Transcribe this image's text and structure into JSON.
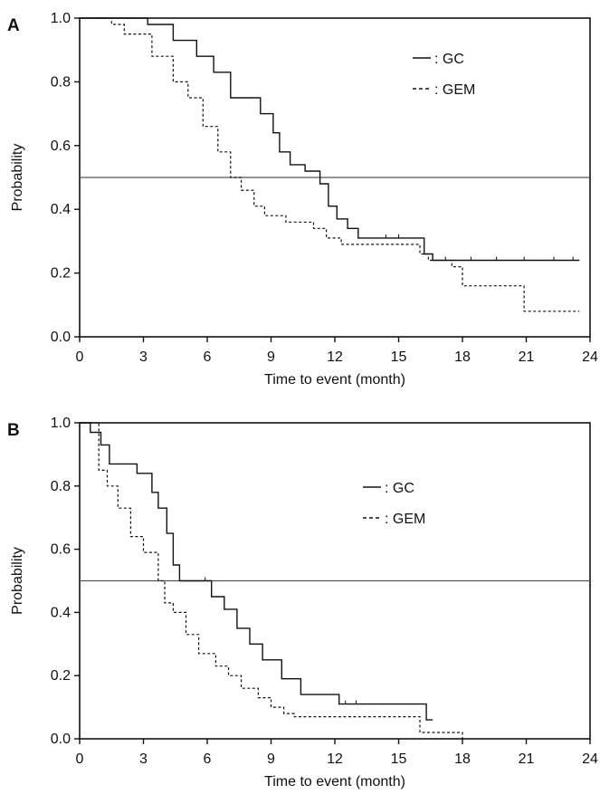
{
  "chart_data": [
    {
      "type": "line",
      "step": true,
      "panel_label": "A",
      "xlabel": "Time to event (month)",
      "ylabel": "Probability",
      "xlim": [
        0,
        24
      ],
      "ylim": [
        0,
        1
      ],
      "x_ticks": [
        0,
        3,
        6,
        9,
        12,
        15,
        18,
        21,
        24
      ],
      "y_ticks": [
        0.0,
        0.2,
        0.4,
        0.6,
        0.8,
        1.0
      ],
      "reference_line": 0.5,
      "legend_position": "upper-right",
      "series": [
        {
          "name": ": GC",
          "line_style": "solid",
          "x": [
            0,
            3.2,
            4.4,
            5.5,
            6.3,
            7.1,
            8.5,
            9.1,
            9.4,
            9.9,
            10.6,
            11.3,
            11.7,
            12.1,
            12.6,
            13.1,
            16.2,
            16.6,
            23.5
          ],
          "y": [
            1.0,
            0.98,
            0.93,
            0.88,
            0.83,
            0.75,
            0.7,
            0.64,
            0.58,
            0.54,
            0.52,
            0.48,
            0.41,
            0.37,
            0.34,
            0.31,
            0.26,
            0.24,
            0.24
          ]
        },
        {
          "name": ": GEM",
          "line_style": "dashed",
          "x": [
            0,
            1.5,
            2.1,
            3.4,
            4.4,
            5.1,
            5.8,
            6.5,
            7.1,
            7.6,
            8.2,
            8.7,
            9.7,
            11.0,
            11.6,
            12.3,
            16.0,
            16.4,
            17.5,
            18.0,
            20.9,
            23.5
          ],
          "y": [
            1.0,
            0.98,
            0.95,
            0.88,
            0.8,
            0.75,
            0.66,
            0.58,
            0.5,
            0.46,
            0.41,
            0.38,
            0.36,
            0.34,
            0.31,
            0.29,
            0.26,
            0.24,
            0.22,
            0.16,
            0.08,
            0.08
          ]
        }
      ],
      "censor_marks": {
        "GC": [
          14.4,
          15.0,
          17.2,
          18.4,
          19.6,
          20.9,
          22.3,
          23.2
        ],
        "GEM": []
      }
    },
    {
      "type": "line",
      "step": true,
      "panel_label": "B",
      "xlabel": "Time to event (month)",
      "ylabel": "Probability",
      "xlim": [
        0,
        24
      ],
      "ylim": [
        0,
        1
      ],
      "x_ticks": [
        0,
        3,
        6,
        9,
        12,
        15,
        18,
        21,
        24
      ],
      "y_ticks": [
        0.0,
        0.2,
        0.4,
        0.6,
        0.8,
        1.0
      ],
      "reference_line": 0.5,
      "legend_position": "center-right",
      "series": [
        {
          "name": ": GC",
          "line_style": "solid",
          "x": [
            0,
            0.5,
            1.0,
            1.4,
            2.7,
            3.4,
            3.7,
            4.1,
            4.4,
            4.7,
            6.2,
            6.8,
            7.4,
            8.0,
            8.6,
            9.5,
            10.4,
            12.2,
            16.3,
            16.6
          ],
          "y": [
            1.0,
            0.97,
            0.93,
            0.87,
            0.84,
            0.78,
            0.73,
            0.65,
            0.55,
            0.5,
            0.45,
            0.41,
            0.35,
            0.3,
            0.25,
            0.19,
            0.14,
            0.11,
            0.06,
            0.06
          ]
        },
        {
          "name": ": GEM",
          "line_style": "dashed",
          "x": [
            0,
            0.9,
            1.3,
            1.8,
            2.4,
            3.0,
            3.7,
            4.0,
            4.4,
            5.0,
            5.6,
            6.4,
            7.0,
            7.6,
            8.4,
            9.0,
            9.6,
            10.1,
            16.0,
            17.8,
            18.0
          ],
          "y": [
            1.0,
            0.85,
            0.8,
            0.73,
            0.64,
            0.59,
            0.5,
            0.43,
            0.4,
            0.33,
            0.27,
            0.23,
            0.2,
            0.16,
            0.13,
            0.1,
            0.08,
            0.07,
            0.02,
            0.02,
            0.0
          ]
        }
      ],
      "censor_marks": {
        "GC": [
          5.9,
          12.5,
          13.0
        ],
        "GEM": []
      }
    }
  ]
}
